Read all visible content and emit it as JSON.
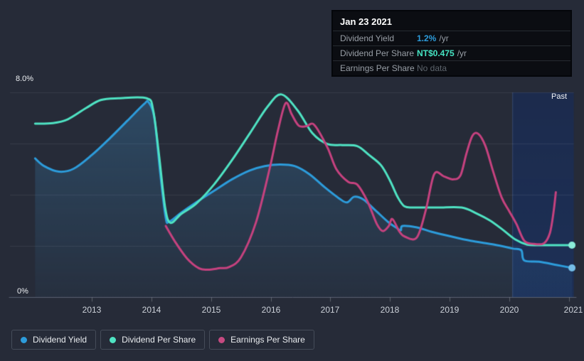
{
  "colors": {
    "background": "#262b38",
    "blue": "#2d9cdb",
    "teal": "#4fe3c3",
    "pink": "#c6427f",
    "gridline": "rgba(255,255,255,0.08)",
    "axis_line": "#5b6273"
  },
  "tooltip": {
    "date": "Jan 23 2021",
    "rows": [
      {
        "label": "Dividend Yield",
        "value": "1.2%",
        "suffix": "/yr"
      },
      {
        "label": "Dividend Per Share",
        "value": "NT$0.475",
        "suffix": "/yr"
      },
      {
        "label": "Earnings Per Share",
        "value": "No data",
        "suffix": ""
      }
    ]
  },
  "legend": {
    "items": [
      {
        "label": "Dividend Yield",
        "color": "#2d9cdb"
      },
      {
        "label": "Dividend Per Share",
        "color": "#4fe3c3"
      },
      {
        "label": "Earnings Per Share",
        "color": "#c64a81"
      }
    ]
  },
  "chart_data": {
    "type": "line",
    "unit": "percent",
    "past_label": "Past",
    "past_start_year": 2020.05,
    "y_axis": {
      "top_label": "8.0%",
      "bottom_label": "0%",
      "min": 0,
      "max": 8,
      "gridline_values": [
        8,
        6,
        4,
        2
      ]
    },
    "x_axis": {
      "tick_years": [
        2013,
        2014,
        2015,
        2016,
        2017,
        2018,
        2019,
        2020,
        2021
      ],
      "min": 2012.05,
      "max": 2021.08
    },
    "series": [
      {
        "name": "Dividend Yield",
        "color": "#2d9cdb",
        "end_dot": true,
        "area_fill": true,
        "points": [
          [
            2012.05,
            5.42
          ],
          [
            2012.2,
            5.12
          ],
          [
            2012.45,
            4.9
          ],
          [
            2012.7,
            5.02
          ],
          [
            2013.0,
            5.55
          ],
          [
            2013.3,
            6.2
          ],
          [
            2013.6,
            6.9
          ],
          [
            2013.88,
            7.55
          ],
          [
            2013.95,
            7.62
          ],
          [
            2014.05,
            7.0
          ],
          [
            2014.15,
            4.8
          ],
          [
            2014.24,
            3.1
          ],
          [
            2014.3,
            2.95
          ],
          [
            2014.5,
            3.3
          ],
          [
            2014.75,
            3.7
          ],
          [
            2015.05,
            4.15
          ],
          [
            2015.35,
            4.6
          ],
          [
            2015.65,
            4.95
          ],
          [
            2015.9,
            5.12
          ],
          [
            2016.15,
            5.18
          ],
          [
            2016.4,
            5.12
          ],
          [
            2016.65,
            4.8
          ],
          [
            2016.9,
            4.3
          ],
          [
            2017.15,
            3.85
          ],
          [
            2017.28,
            3.7
          ],
          [
            2017.4,
            3.92
          ],
          [
            2017.55,
            3.82
          ],
          [
            2017.75,
            3.4
          ],
          [
            2017.97,
            2.93
          ],
          [
            2018.1,
            2.72
          ],
          [
            2018.18,
            2.61
          ],
          [
            2018.21,
            2.78
          ],
          [
            2018.45,
            2.72
          ],
          [
            2018.7,
            2.55
          ],
          [
            2019.0,
            2.38
          ],
          [
            2019.35,
            2.2
          ],
          [
            2019.75,
            2.05
          ],
          [
            2020.05,
            1.9
          ],
          [
            2020.2,
            1.83
          ],
          [
            2020.25,
            1.43
          ],
          [
            2020.5,
            1.38
          ],
          [
            2020.8,
            1.25
          ],
          [
            2021.05,
            1.14
          ]
        ]
      },
      {
        "name": "Dividend Per Share",
        "color": "#4fe3c3",
        "end_dot": true,
        "area_fill": false,
        "points": [
          [
            2012.05,
            6.78
          ],
          [
            2012.35,
            6.8
          ],
          [
            2012.6,
            6.95
          ],
          [
            2012.9,
            7.38
          ],
          [
            2013.15,
            7.7
          ],
          [
            2013.45,
            7.77
          ],
          [
            2013.92,
            7.77
          ],
          [
            2014.03,
            7.3
          ],
          [
            2014.13,
            5.5
          ],
          [
            2014.23,
            3.5
          ],
          [
            2014.32,
            2.9
          ],
          [
            2014.5,
            3.25
          ],
          [
            2014.75,
            3.65
          ],
          [
            2015.05,
            4.4
          ],
          [
            2015.35,
            5.35
          ],
          [
            2015.65,
            6.4
          ],
          [
            2015.95,
            7.45
          ],
          [
            2016.18,
            7.92
          ],
          [
            2016.45,
            7.3
          ],
          [
            2016.7,
            6.4
          ],
          [
            2016.95,
            5.98
          ],
          [
            2017.2,
            5.94
          ],
          [
            2017.45,
            5.9
          ],
          [
            2017.65,
            5.55
          ],
          [
            2017.85,
            5.15
          ],
          [
            2018.0,
            4.55
          ],
          [
            2018.13,
            3.9
          ],
          [
            2018.24,
            3.55
          ],
          [
            2018.4,
            3.5
          ],
          [
            2018.8,
            3.5
          ],
          [
            2019.2,
            3.5
          ],
          [
            2019.45,
            3.27
          ],
          [
            2019.67,
            3.0
          ],
          [
            2019.88,
            2.65
          ],
          [
            2020.1,
            2.25
          ],
          [
            2020.3,
            2.05
          ],
          [
            2020.5,
            2.03
          ],
          [
            2020.8,
            2.03
          ],
          [
            2021.05,
            2.03
          ]
        ]
      },
      {
        "name": "Earnings Per Share",
        "color": "#c6427f",
        "end_dot": false,
        "area_fill": false,
        "points": [
          [
            2014.24,
            2.78
          ],
          [
            2014.4,
            2.15
          ],
          [
            2014.6,
            1.5
          ],
          [
            2014.8,
            1.12
          ],
          [
            2014.95,
            1.07
          ],
          [
            2015.15,
            1.13
          ],
          [
            2015.3,
            1.17
          ],
          [
            2015.5,
            1.55
          ],
          [
            2015.75,
            2.9
          ],
          [
            2015.98,
            5.0
          ],
          [
            2016.12,
            6.5
          ],
          [
            2016.25,
            7.58
          ],
          [
            2016.35,
            7.15
          ],
          [
            2016.47,
            6.7
          ],
          [
            2016.6,
            6.68
          ],
          [
            2016.73,
            6.73
          ],
          [
            2016.95,
            5.85
          ],
          [
            2017.1,
            5.0
          ],
          [
            2017.3,
            4.5
          ],
          [
            2017.45,
            4.4
          ],
          [
            2017.62,
            3.75
          ],
          [
            2017.78,
            2.85
          ],
          [
            2017.88,
            2.58
          ],
          [
            2017.98,
            2.78
          ],
          [
            2018.04,
            3.05
          ],
          [
            2018.16,
            2.55
          ],
          [
            2018.25,
            2.36
          ],
          [
            2018.45,
            2.33
          ],
          [
            2018.6,
            3.4
          ],
          [
            2018.74,
            4.8
          ],
          [
            2018.9,
            4.72
          ],
          [
            2019.05,
            4.6
          ],
          [
            2019.18,
            4.75
          ],
          [
            2019.28,
            5.6
          ],
          [
            2019.38,
            6.3
          ],
          [
            2019.48,
            6.38
          ],
          [
            2019.6,
            5.9
          ],
          [
            2019.73,
            4.9
          ],
          [
            2019.87,
            3.9
          ],
          [
            2020.0,
            3.35
          ],
          [
            2020.12,
            2.85
          ],
          [
            2020.25,
            2.2
          ],
          [
            2020.4,
            2.08
          ],
          [
            2020.58,
            2.1
          ],
          [
            2020.68,
            2.5
          ],
          [
            2020.74,
            3.3
          ],
          [
            2020.78,
            4.1
          ]
        ]
      }
    ]
  }
}
